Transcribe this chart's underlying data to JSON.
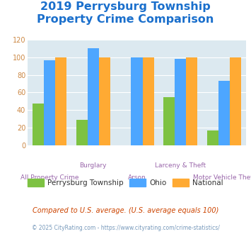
{
  "title_line1": "2019 Perrysburg Township",
  "title_line2": "Property Crime Comparison",
  "title_color": "#1a6fcc",
  "title_fontsize": 11.5,
  "categories": [
    "All Property Crime",
    "Burglary",
    "Arson",
    "Larceny & Theft",
    "Motor Vehicle Theft"
  ],
  "x_labels_row1": [
    "",
    "Burglary",
    "",
    "Larceny & Theft",
    ""
  ],
  "x_labels_row2": [
    "All Property Crime",
    "",
    "Arson",
    "",
    "Motor Vehicle Theft"
  ],
  "perrysburg": [
    47,
    29,
    0,
    55,
    17
  ],
  "ohio": [
    97,
    110,
    100,
    98,
    73
  ],
  "national": [
    100,
    100,
    100,
    100,
    100
  ],
  "colors": {
    "perrysburg": "#7dc242",
    "ohio": "#4da6ff",
    "national": "#ffaa33"
  },
  "ylim": [
    0,
    120
  ],
  "yticks": [
    0,
    20,
    40,
    60,
    80,
    100,
    120
  ],
  "legend_labels": [
    "Perrysburg Township",
    "Ohio",
    "National"
  ],
  "footnote1": "Compared to U.S. average. (U.S. average equals 100)",
  "footnote2": "© 2025 CityRating.com - https://www.cityrating.com/crime-statistics/",
  "footnote1_color": "#cc4400",
  "footnote2_color": "#7799bb",
  "bg_color": "#dce9f0",
  "fig_bg": "#ffffff",
  "label_color": "#9966aa",
  "ytick_color": "#cc8844"
}
